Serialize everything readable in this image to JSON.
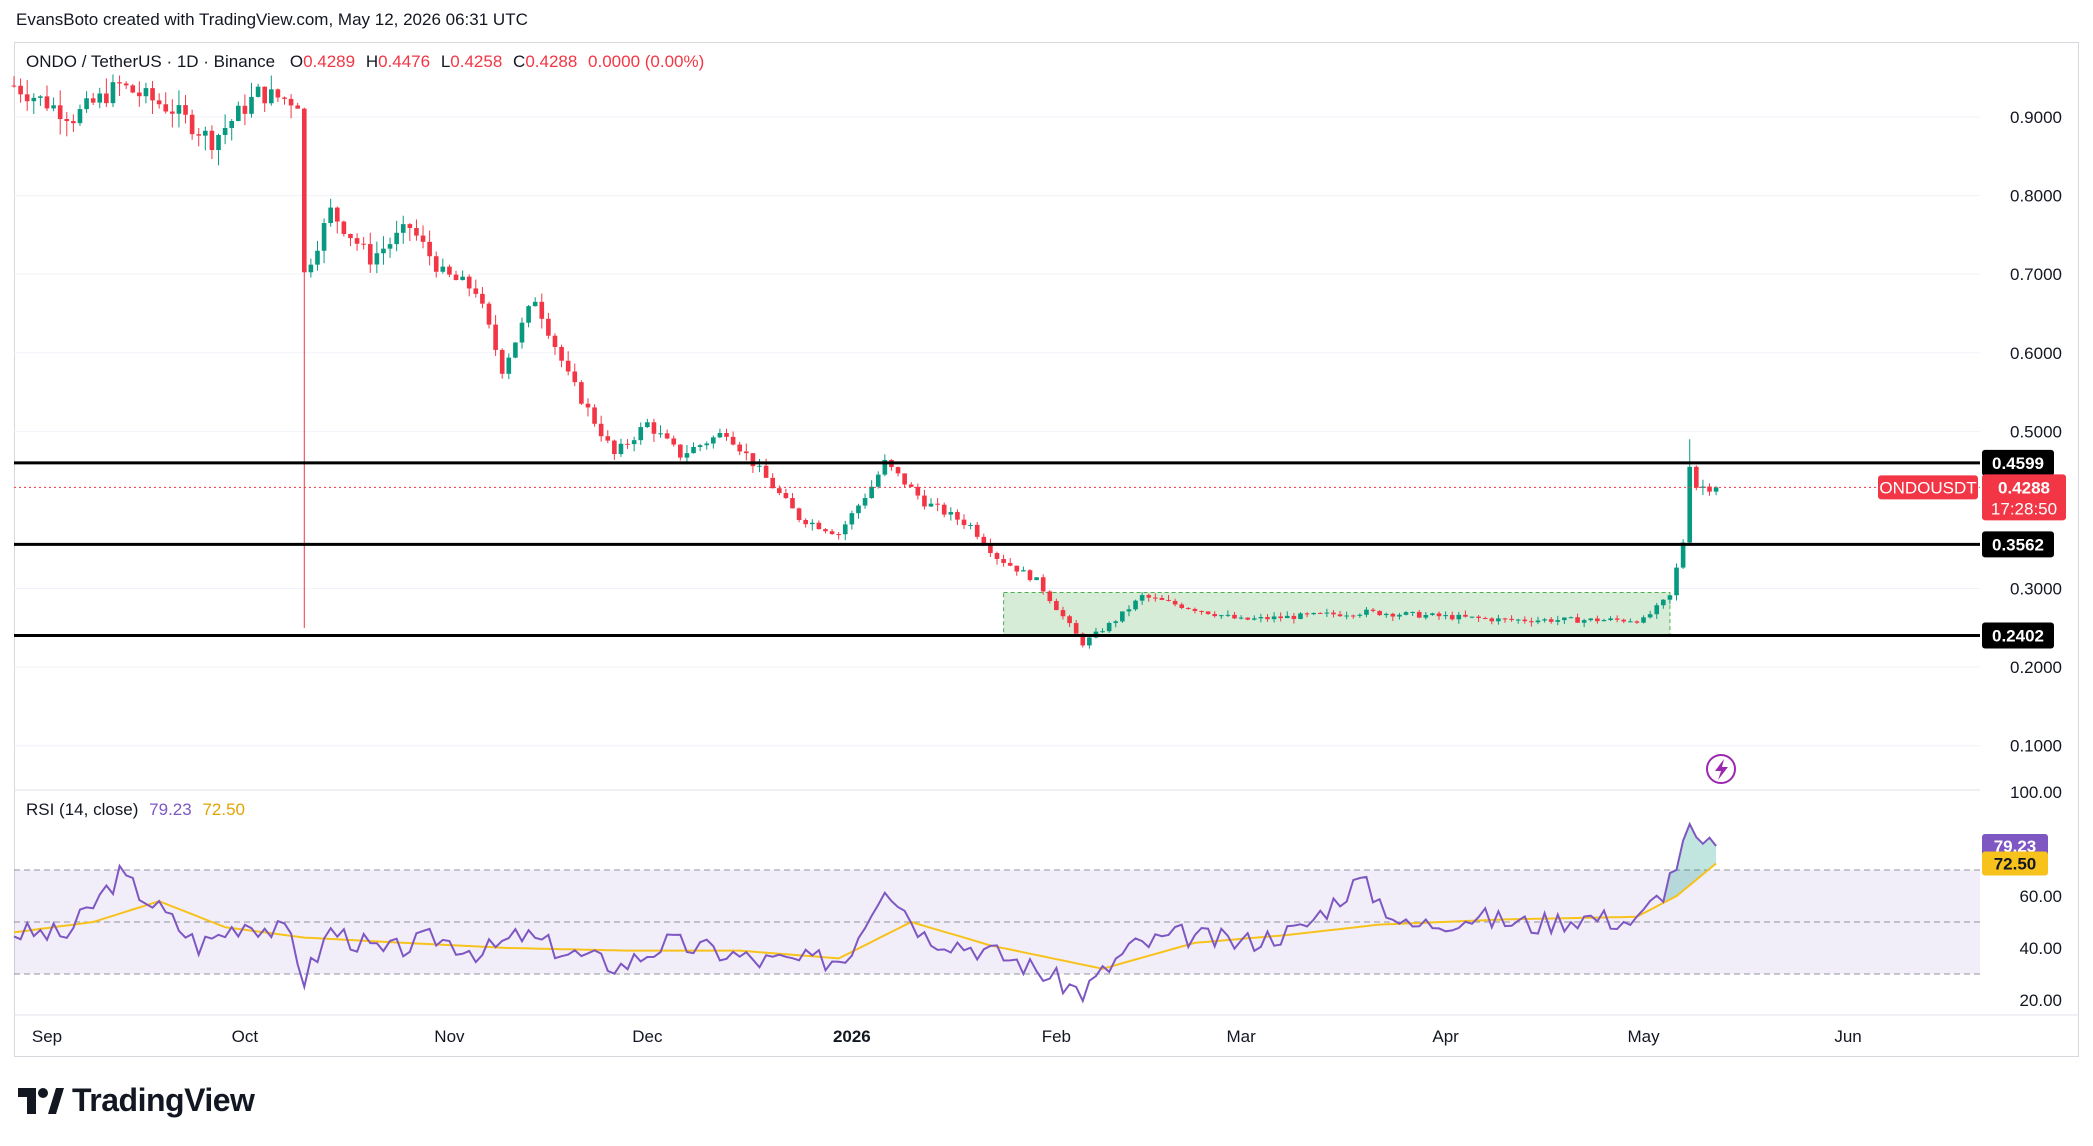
{
  "header": {
    "credit": "EvansBoto created with TradingView.com, May 12, 2026 06:31 UTC"
  },
  "legend": {
    "symbol": "ONDO / TetherUS · 1D · Binance",
    "o_label": "O",
    "o": "0.4289",
    "h_label": "H",
    "h": "0.4476",
    "l_label": "L",
    "l": "0.4258",
    "c_label": "C",
    "c": "0.4288",
    "change": "0.0000 (0.00%)"
  },
  "rsi_legend": {
    "label": "RSI (14, close)",
    "rsi": "79.23",
    "ma": "72.50"
  },
  "colors": {
    "up": "#089981",
    "down": "#f23645",
    "rsi_line": "#7e57c2",
    "rsi_ma": "#f7c21c",
    "range_box": "#c8e6c9"
  },
  "price_axis": [
    "0.9000",
    "0.8000",
    "0.7000",
    "0.6000",
    "0.5000",
    "0.3000",
    "0.2000",
    "0.1000"
  ],
  "rsi_axis": [
    "100.00",
    "60.00",
    "40.00",
    "20.00"
  ],
  "time_axis": [
    "Sep",
    "Oct",
    "Nov",
    "Dec",
    "2026",
    "Feb",
    "Mar",
    "Apr",
    "May",
    "Jun"
  ],
  "levels": [
    {
      "value": 0.4599,
      "label": "0.4599"
    },
    {
      "value": 0.3562,
      "label": "0.3562"
    },
    {
      "value": 0.2402,
      "label": "0.2402"
    }
  ],
  "current_price": {
    "symbol": "ONDOUSDT",
    "price": "0.4288",
    "countdown": "17:28:50",
    "value": 0.4288
  },
  "rsi_tags": {
    "rsi": "79.23",
    "ma": "72.50",
    "rsi_value": 79.23,
    "ma_value": 72.5
  },
  "footer": {
    "brand": "TradingView"
  },
  "chart_data": {
    "type": "candlestick",
    "symbol": "ONDO / TetherUS",
    "interval": "1D",
    "y_range": [
      0.05,
      0.97
    ],
    "date_range": [
      "2025-08-27",
      "2026-06-21"
    ],
    "range_box": {
      "start": "2026-01-24",
      "end": "2026-05-05",
      "low": 0.2402,
      "high": 0.295
    },
    "price_path": [
      [
        "2025-08-27",
        0.94
      ],
      [
        "2025-09-05",
        0.9
      ],
      [
        "2025-09-12",
        0.94
      ],
      [
        "2025-09-20",
        0.91
      ],
      [
        "2025-09-26",
        0.87
      ],
      [
        "2025-10-03",
        0.93
      ],
      [
        "2025-10-09",
        0.92
      ],
      [
        "2025-10-10",
        0.7
      ],
      [
        "2025-10-14",
        0.78
      ],
      [
        "2025-10-20",
        0.72
      ],
      [
        "2025-10-26",
        0.76
      ],
      [
        "2025-10-31",
        0.7
      ],
      [
        "2025-11-05",
        0.68
      ],
      [
        "2025-11-09",
        0.58
      ],
      [
        "2025-11-14",
        0.67
      ],
      [
        "2025-11-19",
        0.57
      ],
      [
        "2025-11-26",
        0.47
      ],
      [
        "2025-12-01",
        0.51
      ],
      [
        "2025-12-06",
        0.47
      ],
      [
        "2025-12-13",
        0.5
      ],
      [
        "2025-12-19",
        0.44
      ],
      [
        "2025-12-24",
        0.39
      ],
      [
        "2025-12-30",
        0.37
      ],
      [
        "2026-01-04",
        0.43
      ],
      [
        "2026-01-06",
        0.46
      ],
      [
        "2026-01-12",
        0.41
      ],
      [
        "2026-01-19",
        0.38
      ],
      [
        "2026-01-23",
        0.34
      ],
      [
        "2026-01-29",
        0.31
      ],
      [
        "2026-02-05",
        0.23
      ],
      [
        "2026-02-10",
        0.26
      ],
      [
        "2026-02-14",
        0.29
      ],
      [
        "2026-03-01",
        0.26
      ],
      [
        "2026-03-20",
        0.27
      ],
      [
        "2026-04-10",
        0.26
      ],
      [
        "2026-05-01",
        0.26
      ],
      [
        "2026-05-05",
        0.29
      ],
      [
        "2026-05-07",
        0.36
      ],
      [
        "2026-05-08",
        0.46
      ],
      [
        "2026-05-09",
        0.43
      ],
      [
        "2026-05-12",
        0.4288
      ]
    ],
    "rsi": {
      "period": 14,
      "source": "close",
      "levels": [
        70,
        50,
        30
      ],
      "y_range": [
        20,
        100
      ],
      "values": [
        [
          "2025-08-27",
          46
        ],
        [
          "2025-09-04",
          45
        ],
        [
          "2025-09-12",
          68
        ],
        [
          "2025-09-18",
          55
        ],
        [
          "2025-09-24",
          41
        ],
        [
          "2025-10-01",
          50
        ],
        [
          "2025-10-08",
          45
        ],
        [
          "2025-10-10",
          28
        ],
        [
          "2025-10-14",
          47
        ],
        [
          "2025-10-22",
          38
        ],
        [
          "2025-10-30",
          44
        ],
        [
          "2025-11-06",
          38
        ],
        [
          "2025-11-12",
          45
        ],
        [
          "2025-11-19",
          38
        ],
        [
          "2025-11-27",
          33
        ],
        [
          "2025-12-04",
          42
        ],
        [
          "2025-12-11",
          39
        ],
        [
          "2025-12-18",
          35
        ],
        [
          "2025-12-25",
          35
        ],
        [
          "2025-12-31",
          36
        ],
        [
          "2026-01-06",
          65
        ],
        [
          "2026-01-12",
          45
        ],
        [
          "2026-01-20",
          40
        ],
        [
          "2026-01-26",
          35
        ],
        [
          "2026-02-05",
          23
        ],
        [
          "2026-02-12",
          40
        ],
        [
          "2026-02-20",
          45
        ],
        [
          "2026-03-01",
          42
        ],
        [
          "2026-03-10",
          47
        ],
        [
          "2026-03-19",
          66
        ],
        [
          "2026-03-26",
          48
        ],
        [
          "2026-04-05",
          52
        ],
        [
          "2026-04-14",
          49
        ],
        [
          "2026-04-22",
          52
        ],
        [
          "2026-04-30",
          50
        ],
        [
          "2026-05-04",
          62
        ],
        [
          "2026-05-07",
          78
        ],
        [
          "2026-05-08",
          87
        ],
        [
          "2026-05-09",
          79
        ],
        [
          "2026-05-12",
          79.23
        ]
      ],
      "ma_values": [
        [
          "2025-08-27",
          46
        ],
        [
          "2025-09-08",
          50
        ],
        [
          "2025-09-18",
          58
        ],
        [
          "2025-09-28",
          48
        ],
        [
          "2025-10-10",
          44
        ],
        [
          "2025-10-25",
          42
        ],
        [
          "2025-11-10",
          40
        ],
        [
          "2025-11-28",
          39
        ],
        [
          "2025-12-15",
          39
        ],
        [
          "2025-12-30",
          36
        ],
        [
          "2026-01-10",
          50
        ],
        [
          "2026-01-22",
          41
        ],
        [
          "2026-02-08",
          32
        ],
        [
          "2026-02-22",
          42
        ],
        [
          "2026-03-08",
          45
        ],
        [
          "2026-03-22",
          49
        ],
        [
          "2026-04-10",
          51
        ],
        [
          "2026-04-30",
          52
        ],
        [
          "2026-05-06",
          60
        ],
        [
          "2026-05-12",
          72.5
        ]
      ]
    }
  }
}
